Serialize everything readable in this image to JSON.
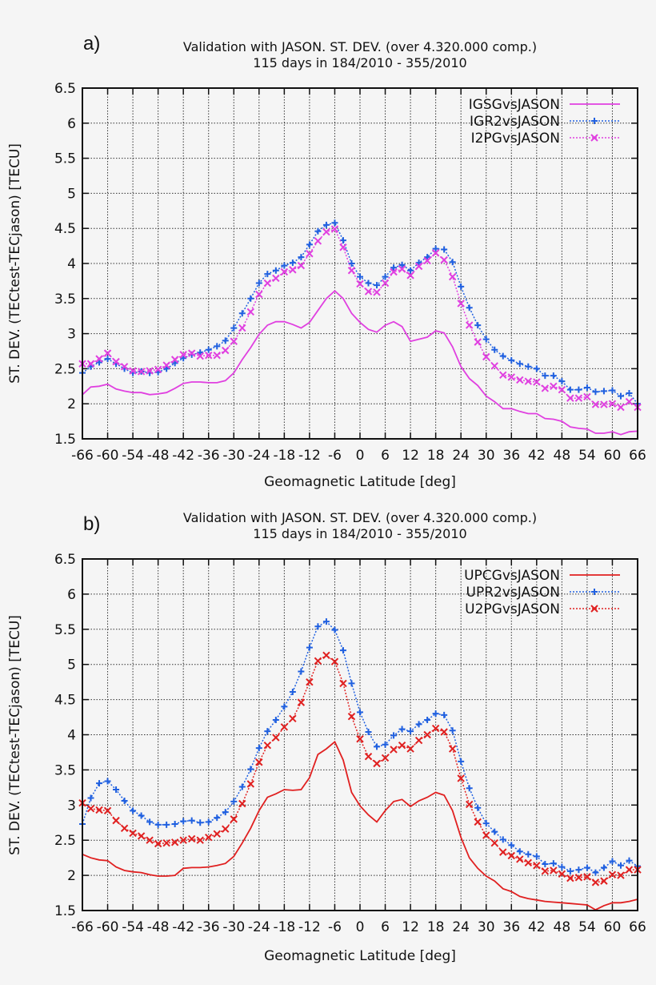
{
  "chart_data": [
    {
      "type": "line",
      "panel_label": "a)",
      "title": "Validation with JASON. ST. DEV. (over 4.320.000 comp.)",
      "subtitle": "115 days in 184/2010 - 355/2010",
      "xlabel": "Geomagnetic Latitude [deg]",
      "ylabel": "ST. DEV. (TECtest-TECjason) [TECU]",
      "xlim": [
        -66,
        66
      ],
      "ylim": [
        1.5,
        6.5
      ],
      "xticks": [
        -66,
        -60,
        -54,
        -48,
        -42,
        -36,
        -30,
        -24,
        -18,
        -12,
        -6,
        0,
        6,
        12,
        18,
        24,
        30,
        36,
        42,
        48,
        54,
        60,
        66
      ],
      "yticks": [
        1.5,
        2,
        2.5,
        3,
        3.5,
        4,
        4.5,
        5,
        5.5,
        6,
        6.5
      ],
      "grid": true,
      "legend_position": "top-right",
      "x": [
        -66,
        -64,
        -62,
        -60,
        -58,
        -56,
        -54,
        -52,
        -50,
        -48,
        -46,
        -44,
        -42,
        -40,
        -38,
        -36,
        -34,
        -32,
        -30,
        -28,
        -26,
        -24,
        -22,
        -20,
        -18,
        -16,
        -14,
        -12,
        -10,
        -8,
        -6,
        -4,
        -2,
        0,
        2,
        4,
        6,
        8,
        10,
        12,
        14,
        16,
        18,
        20,
        22,
        24,
        26,
        28,
        30,
        32,
        34,
        36,
        38,
        40,
        42,
        44,
        46,
        48,
        50,
        52,
        54,
        56,
        58,
        60,
        62,
        64,
        66
      ],
      "series": [
        {
          "name": "IGSGvsJASON",
          "color": "#e040e0",
          "style": "solid",
          "marker": "none",
          "values": [
            2.13,
            2.24,
            2.25,
            2.28,
            2.21,
            2.18,
            2.16,
            2.16,
            2.13,
            2.14,
            2.16,
            2.22,
            2.29,
            2.31,
            2.31,
            2.3,
            2.3,
            2.33,
            2.44,
            2.63,
            2.8,
            2.99,
            3.12,
            3.17,
            3.17,
            3.13,
            3.08,
            3.16,
            3.33,
            3.5,
            3.61,
            3.5,
            3.29,
            3.16,
            3.06,
            3.02,
            3.12,
            3.17,
            3.1,
            2.89,
            2.92,
            2.95,
            3.04,
            3.01,
            2.81,
            2.53,
            2.36,
            2.26,
            2.11,
            2.03,
            1.93,
            1.93,
            1.89,
            1.86,
            1.86,
            1.79,
            1.78,
            1.75,
            1.67,
            1.65,
            1.64,
            1.58,
            1.58,
            1.6,
            1.56,
            1.6,
            1.61
          ]
        },
        {
          "name": "IGR2vsJASON",
          "color": "#2060e0",
          "style": "dotted",
          "marker": "plus",
          "values": [
            2.44,
            2.53,
            2.59,
            2.64,
            2.57,
            2.5,
            2.44,
            2.46,
            2.44,
            2.45,
            2.5,
            2.58,
            2.65,
            2.7,
            2.73,
            2.77,
            2.82,
            2.9,
            3.08,
            3.29,
            3.5,
            3.72,
            3.85,
            3.9,
            3.97,
            4.01,
            4.09,
            4.27,
            4.46,
            4.55,
            4.58,
            4.33,
            4.0,
            3.81,
            3.72,
            3.69,
            3.81,
            3.94,
            3.98,
            3.9,
            4.01,
            4.09,
            4.21,
            4.2,
            4.02,
            3.67,
            3.37,
            3.12,
            2.92,
            2.77,
            2.68,
            2.62,
            2.57,
            2.53,
            2.5,
            2.4,
            2.4,
            2.32,
            2.2,
            2.2,
            2.23,
            2.17,
            2.18,
            2.19,
            2.11,
            2.15,
            2.0
          ]
        },
        {
          "name": "I2PGvsJASON",
          "color": "#e040e0",
          "style": "dotted",
          "marker": "cross",
          "values": [
            2.57,
            2.57,
            2.64,
            2.72,
            2.6,
            2.53,
            2.47,
            2.46,
            2.47,
            2.49,
            2.55,
            2.63,
            2.7,
            2.72,
            2.68,
            2.69,
            2.69,
            2.76,
            2.89,
            3.08,
            3.31,
            3.56,
            3.72,
            3.79,
            3.88,
            3.91,
            3.97,
            4.14,
            4.32,
            4.45,
            4.49,
            4.23,
            3.9,
            3.71,
            3.6,
            3.59,
            3.72,
            3.88,
            3.92,
            3.83,
            3.96,
            4.04,
            4.15,
            4.05,
            3.81,
            3.43,
            3.12,
            2.88,
            2.67,
            2.54,
            2.41,
            2.38,
            2.34,
            2.32,
            2.31,
            2.22,
            2.25,
            2.2,
            2.08,
            2.08,
            2.1,
            1.99,
            1.99,
            2.0,
            1.95,
            2.03,
            1.95
          ]
        }
      ]
    },
    {
      "type": "line",
      "panel_label": "b)",
      "title": "Validation with JASON. ST. DEV. (over 4.320.000 comp.)",
      "subtitle": "115 days in 184/2010 - 355/2010",
      "xlabel": "Geomagnetic Latitude [deg]",
      "ylabel": "ST. DEV. (TECtest-TECjason) [TECU]",
      "xlim": [
        -66,
        66
      ],
      "ylim": [
        1.5,
        6.5
      ],
      "xticks": [
        -66,
        -60,
        -54,
        -48,
        -42,
        -36,
        -30,
        -24,
        -18,
        -12,
        -6,
        0,
        6,
        12,
        18,
        24,
        30,
        36,
        42,
        48,
        54,
        60,
        66
      ],
      "yticks": [
        1.5,
        2,
        2.5,
        3,
        3.5,
        4,
        4.5,
        5,
        5.5,
        6,
        6.5
      ],
      "grid": true,
      "legend_position": "top-right",
      "x": [
        -66,
        -64,
        -62,
        -60,
        -58,
        -56,
        -54,
        -52,
        -50,
        -48,
        -46,
        -44,
        -42,
        -40,
        -38,
        -36,
        -34,
        -32,
        -30,
        -28,
        -26,
        -24,
        -22,
        -20,
        -18,
        -16,
        -14,
        -12,
        -10,
        -8,
        -6,
        -4,
        -2,
        0,
        2,
        4,
        6,
        8,
        10,
        12,
        14,
        16,
        18,
        20,
        22,
        24,
        26,
        28,
        30,
        32,
        34,
        36,
        38,
        40,
        42,
        44,
        46,
        48,
        50,
        52,
        54,
        56,
        58,
        60,
        62,
        64,
        66
      ],
      "series": [
        {
          "name": "UPCGvsJASON",
          "color": "#e02020",
          "style": "solid",
          "marker": "none",
          "values": [
            2.3,
            2.25,
            2.22,
            2.21,
            2.12,
            2.07,
            2.05,
            2.04,
            2.01,
            1.99,
            1.99,
            2.0,
            2.1,
            2.11,
            2.11,
            2.12,
            2.14,
            2.17,
            2.27,
            2.46,
            2.67,
            2.92,
            3.11,
            3.16,
            3.22,
            3.21,
            3.22,
            3.39,
            3.72,
            3.8,
            3.9,
            3.64,
            3.18,
            2.99,
            2.86,
            2.76,
            2.92,
            3.05,
            3.08,
            2.98,
            3.06,
            3.11,
            3.18,
            3.14,
            2.92,
            2.54,
            2.25,
            2.1,
            1.99,
            1.92,
            1.81,
            1.77,
            1.7,
            1.67,
            1.65,
            1.63,
            1.62,
            1.61,
            1.6,
            1.59,
            1.58,
            1.51,
            1.57,
            1.61,
            1.61,
            1.63,
            1.66
          ]
        },
        {
          "name": "UPR2vsJASON",
          "color": "#2060e0",
          "style": "dotted",
          "marker": "plus",
          "values": [
            2.73,
            3.1,
            3.31,
            3.34,
            3.22,
            3.06,
            2.92,
            2.85,
            2.76,
            2.72,
            2.72,
            2.73,
            2.77,
            2.78,
            2.75,
            2.76,
            2.82,
            2.9,
            3.05,
            3.26,
            3.51,
            3.81,
            4.05,
            4.21,
            4.4,
            4.61,
            4.9,
            5.24,
            5.54,
            5.61,
            5.49,
            5.2,
            4.73,
            4.32,
            4.04,
            3.83,
            3.86,
            3.99,
            4.08,
            4.05,
            4.15,
            4.21,
            4.3,
            4.28,
            4.06,
            3.62,
            3.24,
            2.96,
            2.74,
            2.62,
            2.51,
            2.43,
            2.34,
            2.3,
            2.27,
            2.16,
            2.17,
            2.12,
            2.06,
            2.08,
            2.11,
            2.04,
            2.11,
            2.2,
            2.14,
            2.21,
            2.13
          ]
        },
        {
          "name": "U2PGvsJASON",
          "color": "#e02020",
          "style": "dotted",
          "marker": "cross",
          "values": [
            3.03,
            2.95,
            2.93,
            2.92,
            2.78,
            2.67,
            2.6,
            2.56,
            2.5,
            2.45,
            2.46,
            2.47,
            2.5,
            2.52,
            2.5,
            2.54,
            2.59,
            2.66,
            2.8,
            3.02,
            3.3,
            3.61,
            3.85,
            3.96,
            4.11,
            4.23,
            4.46,
            4.75,
            5.05,
            5.13,
            5.04,
            4.73,
            4.26,
            3.94,
            3.69,
            3.59,
            3.67,
            3.79,
            3.85,
            3.8,
            3.92,
            4.0,
            4.09,
            4.04,
            3.8,
            3.38,
            3.01,
            2.76,
            2.57,
            2.46,
            2.33,
            2.28,
            2.23,
            2.18,
            2.14,
            2.06,
            2.07,
            2.02,
            1.96,
            1.97,
            1.98,
            1.9,
            1.92,
            2.01,
            2.0,
            2.08,
            2.08
          ]
        }
      ]
    }
  ]
}
